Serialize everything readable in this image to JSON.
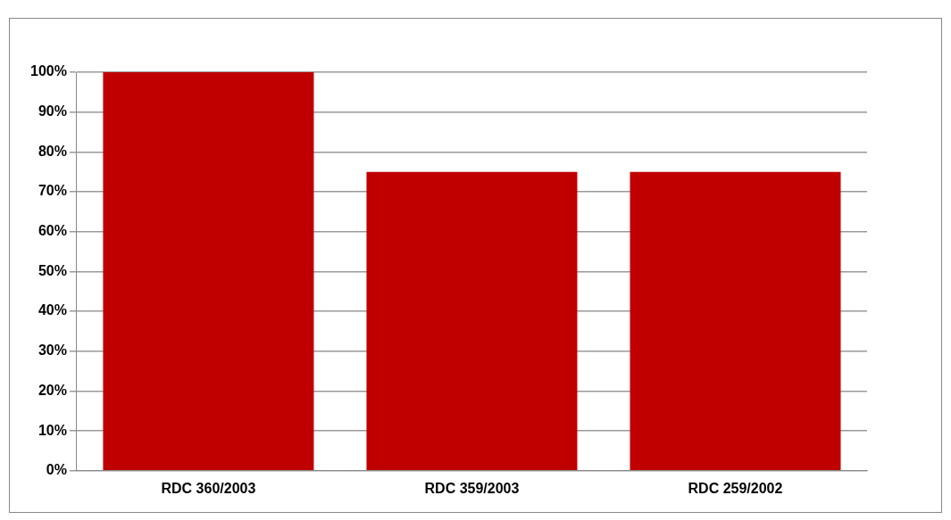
{
  "chart_data": {
    "type": "bar",
    "categories": [
      "RDC 360/2003",
      "RDC 359/2003",
      "RDC 259/2002"
    ],
    "values": [
      100,
      75,
      75
    ],
    "color": "#c00000",
    "ylim": [
      0,
      100
    ],
    "yticks": [
      {
        "value": 0,
        "label": "0%"
      },
      {
        "value": 10,
        "label": "10%"
      },
      {
        "value": 20,
        "label": "20%"
      },
      {
        "value": 30,
        "label": "30%"
      },
      {
        "value": 40,
        "label": "40%"
      },
      {
        "value": 50,
        "label": "50%"
      },
      {
        "value": 60,
        "label": "60%"
      },
      {
        "value": 70,
        "label": "70%"
      },
      {
        "value": 80,
        "label": "80%"
      },
      {
        "value": 90,
        "label": "90%"
      },
      {
        "value": 100,
        "label": "100%"
      }
    ],
    "grid": "y",
    "legend": false
  }
}
